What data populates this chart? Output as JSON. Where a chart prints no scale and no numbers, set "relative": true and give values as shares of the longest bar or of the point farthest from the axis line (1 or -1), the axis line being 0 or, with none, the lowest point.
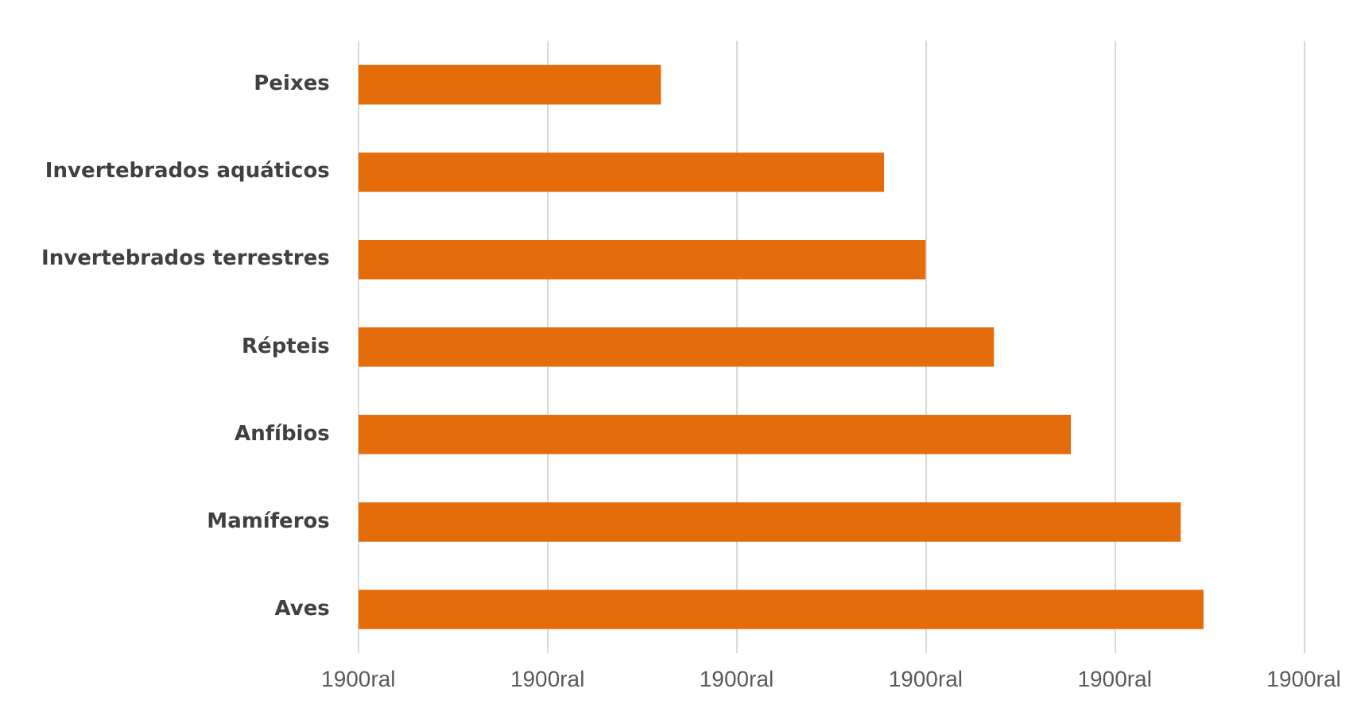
{
  "chart_data": {
    "type": "bar",
    "orientation": "horizontal",
    "relative": true,
    "categories": [
      "Peixes",
      "Invertebrados aquáticos",
      "Invertebrados terrestres",
      "Répteis",
      "Anfíbios",
      "Mamíferos",
      "Aves"
    ],
    "values": [
      0.358,
      0.622,
      0.671,
      0.752,
      0.843,
      0.973,
      1
    ],
    "color": "#e46c0a",
    "annotations": [
      "1900ral",
      "1900ral",
      "1900ral",
      "1900ral",
      "1900ral",
      "1900ral"
    ],
    "grid": "x",
    "legend": false
  }
}
